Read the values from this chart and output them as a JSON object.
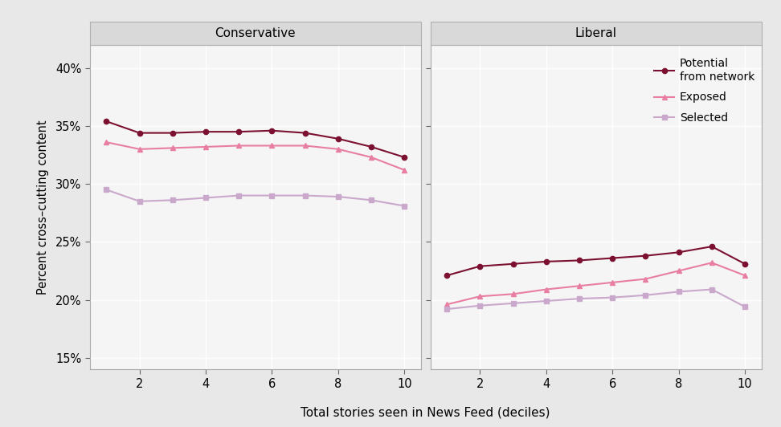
{
  "x": [
    1,
    2,
    3,
    4,
    5,
    6,
    7,
    8,
    9,
    10
  ],
  "conservative": {
    "potential": [
      0.354,
      0.344,
      0.344,
      0.345,
      0.345,
      0.346,
      0.344,
      0.339,
      0.332,
      0.323
    ],
    "exposed": [
      0.336,
      0.33,
      0.331,
      0.332,
      0.333,
      0.333,
      0.333,
      0.33,
      0.323,
      0.312
    ],
    "selected": [
      0.295,
      0.285,
      0.286,
      0.288,
      0.29,
      0.29,
      0.29,
      0.289,
      0.286,
      0.281
    ]
  },
  "liberal": {
    "potential": [
      0.221,
      0.229,
      0.231,
      0.233,
      0.234,
      0.236,
      0.238,
      0.241,
      0.246,
      0.231
    ],
    "exposed": [
      0.196,
      0.203,
      0.205,
      0.209,
      0.212,
      0.215,
      0.218,
      0.225,
      0.232,
      0.221
    ],
    "selected": [
      0.192,
      0.195,
      0.197,
      0.199,
      0.201,
      0.202,
      0.204,
      0.207,
      0.209,
      0.194
    ]
  },
  "colors": {
    "potential": "#7b1030",
    "exposed": "#e87ea1",
    "selected": "#c9a8cc"
  },
  "panel_titles": [
    "Conservative",
    "Liberal"
  ],
  "xlabel": "Total stories seen in News Feed (deciles)",
  "ylabel": "Percent cross–cutting content",
  "ylim": [
    0.14,
    0.42
  ],
  "yticks": [
    0.15,
    0.2,
    0.25,
    0.3,
    0.35,
    0.4
  ],
  "xticks": [
    2,
    4,
    6,
    8,
    10
  ],
  "legend_labels": [
    "Potential\nfrom network",
    "Exposed",
    "Selected"
  ],
  "outer_bg": "#e8e8e8",
  "panel_bg": "#f5f5f5",
  "strip_bg": "#d9d9d9",
  "grid_color": "#ffffff",
  "strip_line_color": "#b0b0b0"
}
